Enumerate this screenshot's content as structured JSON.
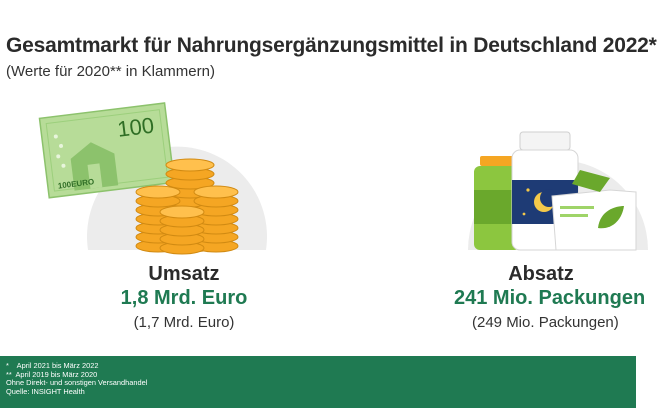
{
  "header": {
    "title": "Gesamtmarkt für Nahrungsergänzungsmittel in Deutschland 2022*",
    "subtitle": "(Werte für 2020** in Klammern)"
  },
  "umsatz": {
    "label": "Umsatz",
    "value": "1,8 Mrd. Euro",
    "previous": "(1,7 Mrd. Euro)",
    "banknote_large": "100",
    "banknote_small": "100EURO"
  },
  "absatz": {
    "label": "Absatz",
    "value": "241 Mio. Packungen",
    "previous": "(249 Mio. Packungen)"
  },
  "footnotes": {
    "line1": "*    April 2021 bis März 2022",
    "line2": "**  April 2019 bis März 2020",
    "line3": "Ohne Direkt- und sonstigen Versandhandel",
    "line4": "Quelle: INSIGHT Health"
  },
  "colors": {
    "brand_green": "#1f7a52",
    "coin_gold": "#f5a623",
    "banknote_green": "#a9d48a",
    "circle_grey": "#ececec"
  }
}
